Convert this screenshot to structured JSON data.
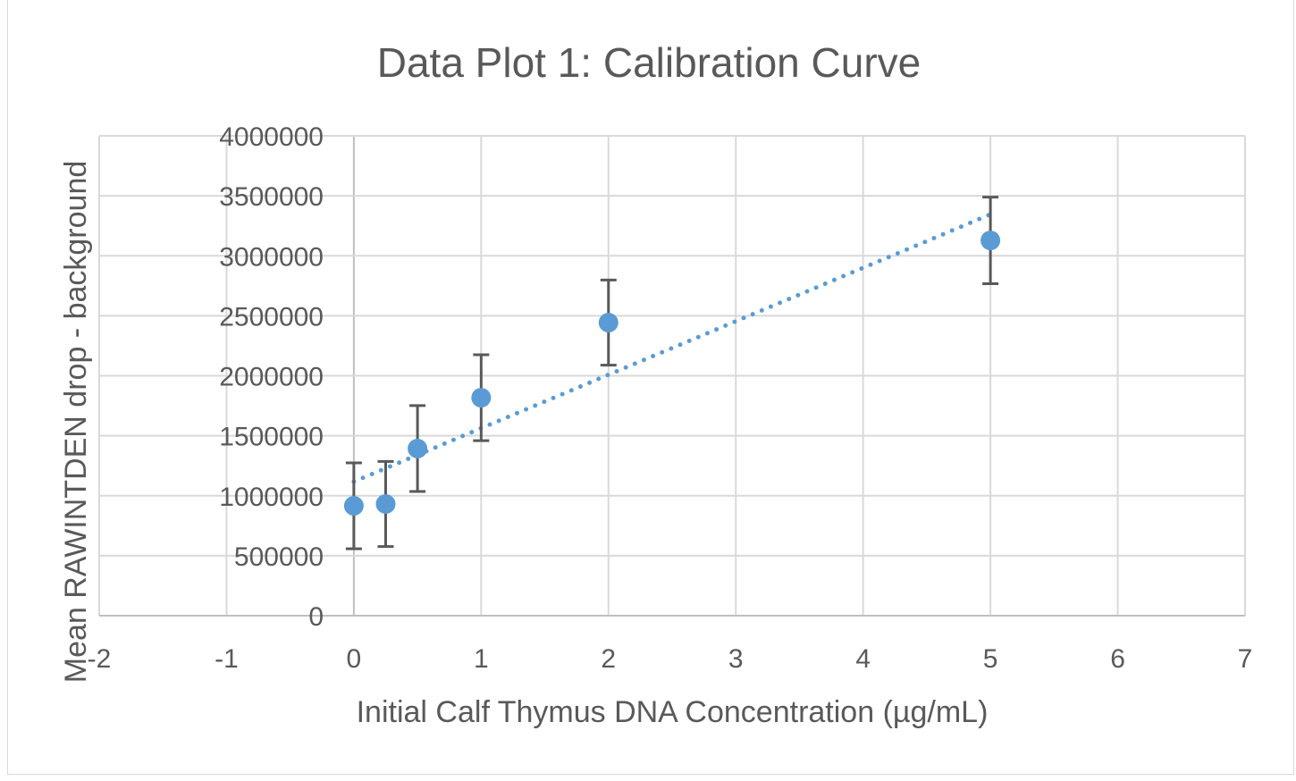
{
  "chart_data": {
    "type": "scatter",
    "title": "Data Plot 1: Calibration Curve",
    "xlabel": "Initial Calf Thymus DNA Concentration (µg/mL)",
    "ylabel": "Mean RAWINTDEN drop - background",
    "xlim": [
      -2,
      7
    ],
    "ylim": [
      0,
      4000000
    ],
    "x_ticks": [
      "-2",
      "-1",
      "0",
      "1",
      "2",
      "3",
      "4",
      "5",
      "6",
      "7"
    ],
    "y_ticks": [
      "0",
      "500000",
      "1000000",
      "1500000",
      "2000000",
      "2500000",
      "3000000",
      "3500000",
      "4000000"
    ],
    "grid": true,
    "series": [
      {
        "name": "Mean RAWINTDEN",
        "color": "#5b9bd5",
        "points": [
          {
            "x": 0,
            "y": 916000,
            "err": 358000
          },
          {
            "x": 0.25,
            "y": 931000,
            "err": 355000
          },
          {
            "x": 0.5,
            "y": 1393000,
            "err": 358000
          },
          {
            "x": 1,
            "y": 1817000,
            "err": 358000
          },
          {
            "x": 2,
            "y": 2443000,
            "err": 355000
          },
          {
            "x": 5,
            "y": 3128000,
            "err": 361000
          }
        ]
      }
    ],
    "trendline": {
      "type": "linear",
      "style": "dotted",
      "color": "#5b9bd5",
      "x": [
        0,
        5
      ],
      "y": [
        1117000,
        3345000
      ]
    },
    "error_bar_color": "#595959"
  }
}
